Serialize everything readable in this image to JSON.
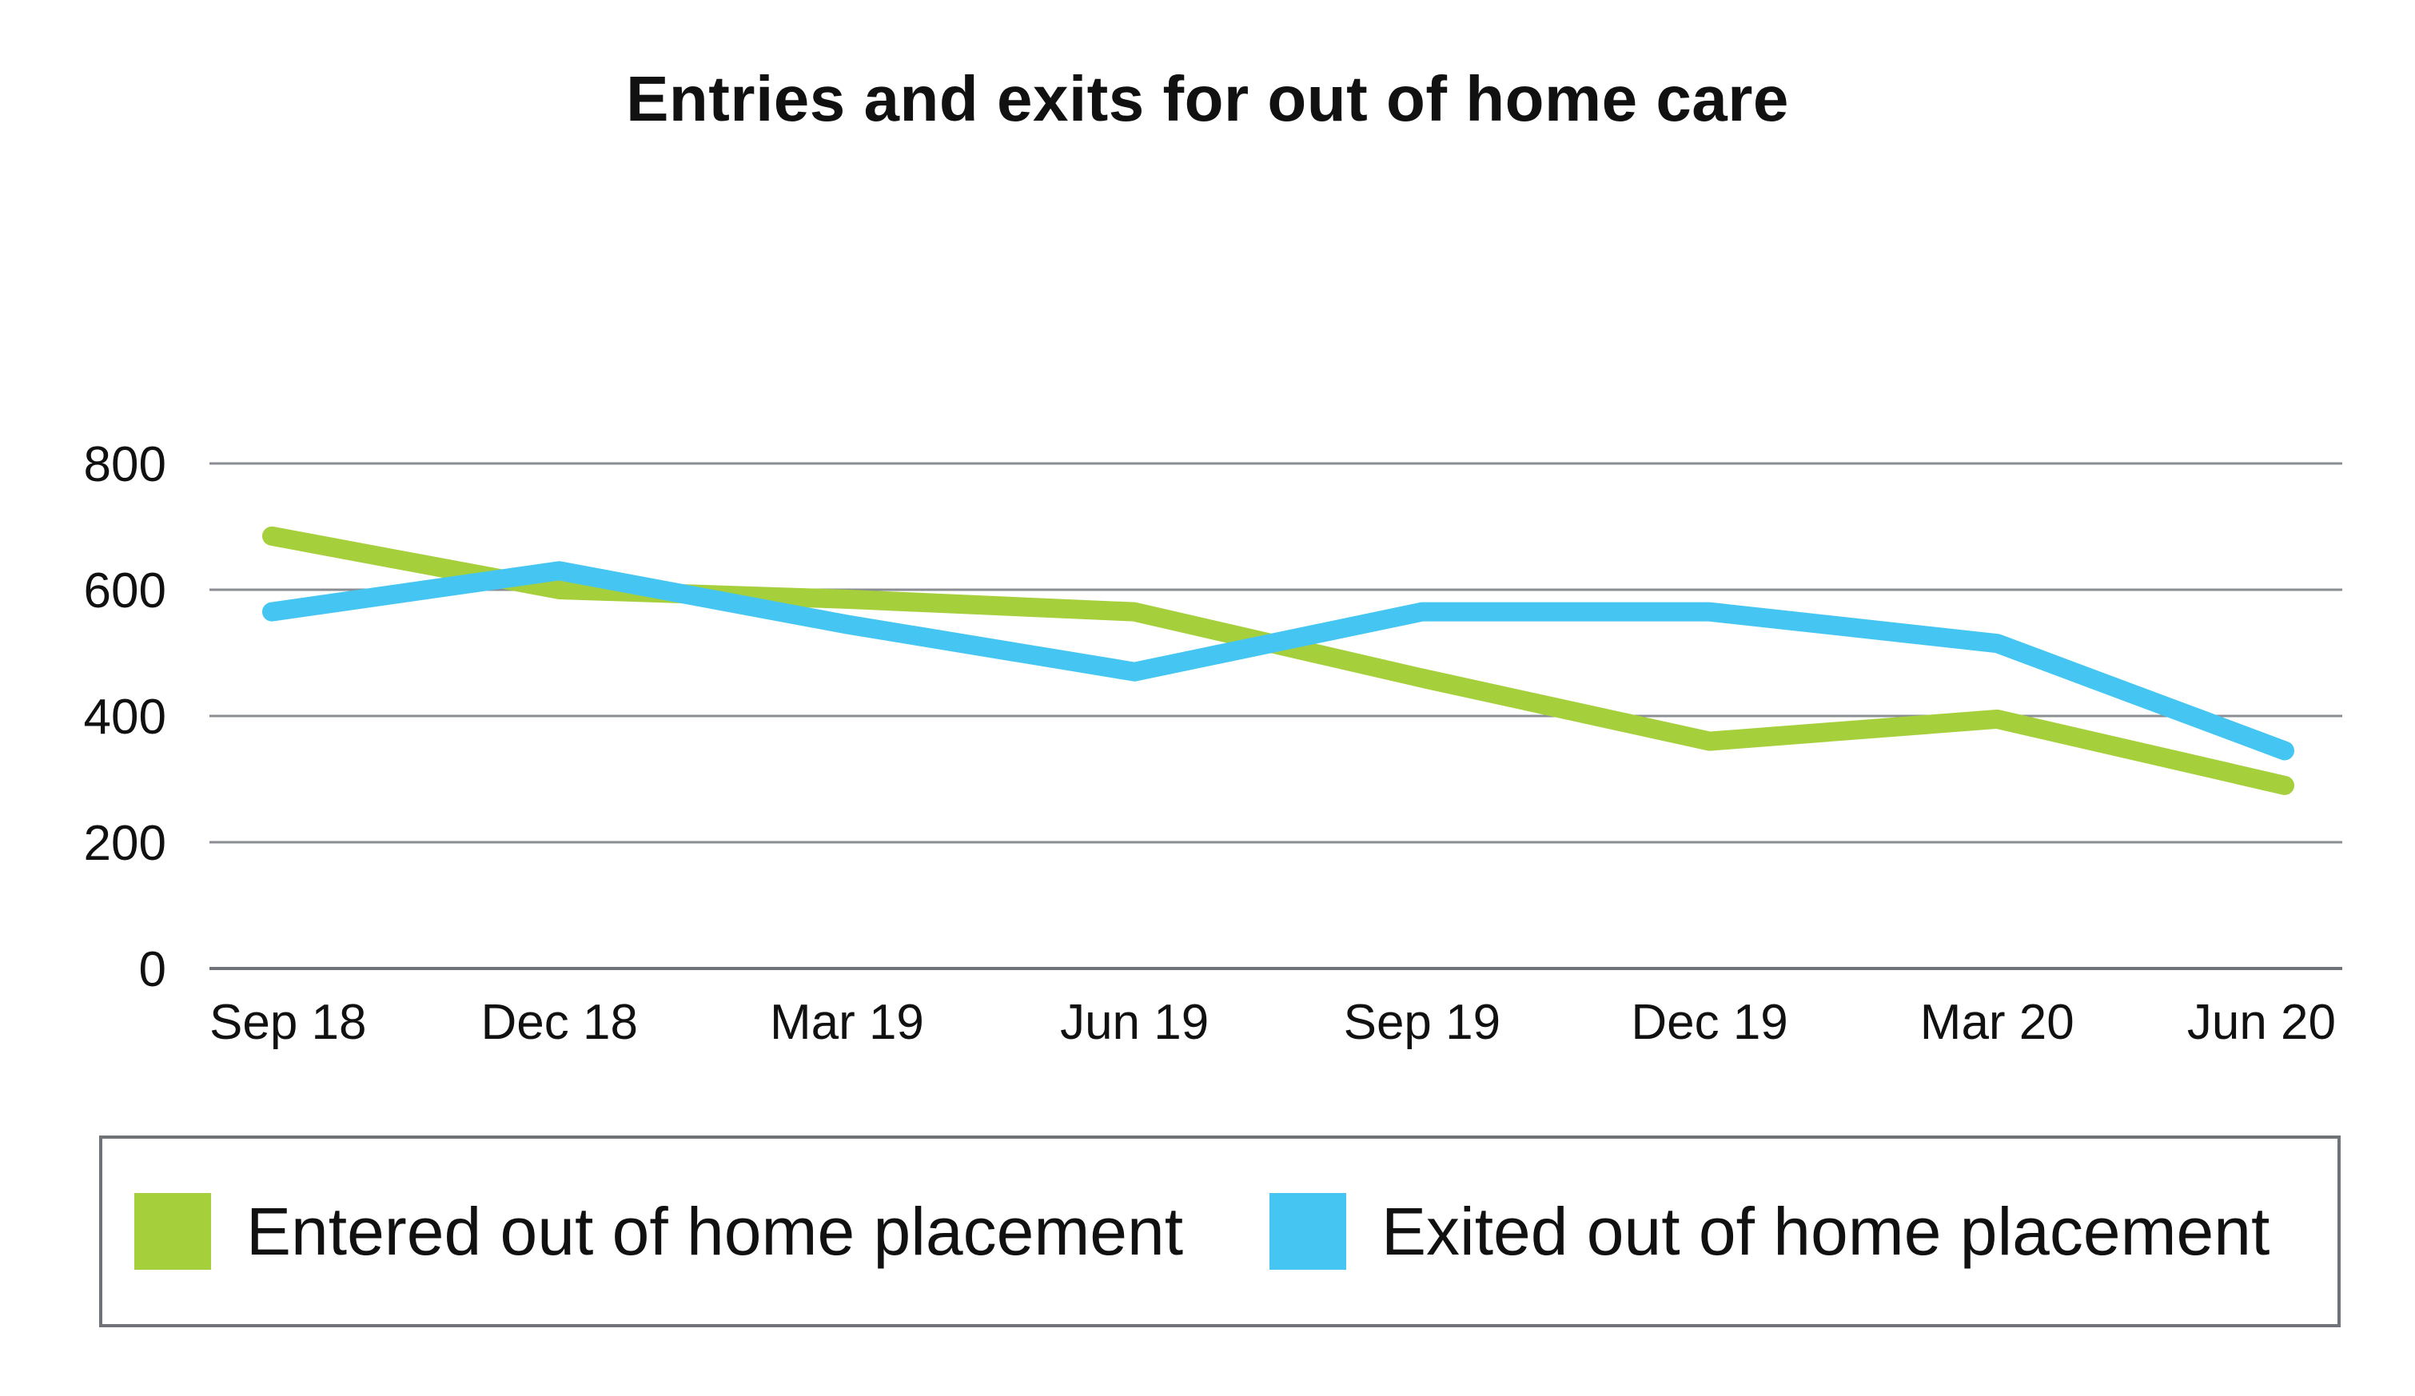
{
  "chart_data": {
    "type": "line",
    "title": "Entries and exits for out of home care",
    "categories": [
      "Sep 18",
      "Dec 18",
      "Mar 19",
      "Jun 19",
      "Sep 19",
      "Dec 19",
      "Mar 20",
      "Jun 20"
    ],
    "series": [
      {
        "name": "Entered out of home placement",
        "color": "#a6cf3c",
        "values": [
          685,
          600,
          585,
          565,
          460,
          360,
          395,
          290
        ]
      },
      {
        "name": "Exited out of home placement",
        "color": "#45c6f2",
        "values": [
          565,
          630,
          545,
          470,
          565,
          565,
          515,
          345
        ]
      }
    ],
    "ylim": [
      0,
      800
    ],
    "yticks": [
      0,
      200,
      400,
      600,
      800
    ],
    "grid": true,
    "legend_position": "bottom",
    "xlabel": "",
    "ylabel": ""
  }
}
